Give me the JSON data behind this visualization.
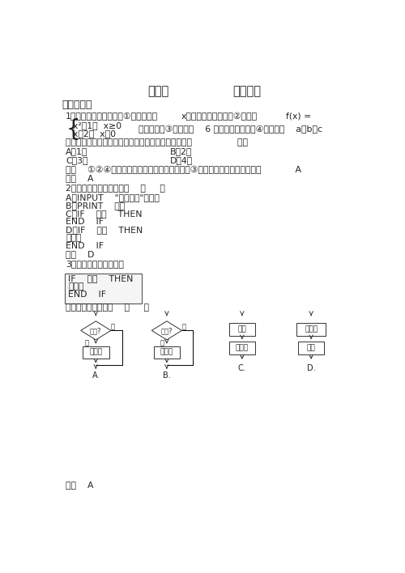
{
  "title_left": "第一章",
  "title_right": "条件语句",
  "section1": "一、选择题",
  "q1_line1a": "1．给出以下四个问题，①输入一个数",
  "q1_line1b": "x，输出它的绝对值；②求函数",
  "q1_line1c": "f(x) =",
  "q1_line2": "x²－1，  x≥0",
  "q1_line3": "x＋2，  x＜0",
  "q1_line4": "的函数值；③求面积为    6 的正方形的周长；④求三个数    a，b，c",
  "q1_line5": "中的最大数，其中不需要用条件语句来描述其算法的有                （）",
  "q1_A": "A．1个",
  "q1_B": "B．2个",
  "q1_C": "C．3个",
  "q1_D": "D．4个",
  "q1_anal": "解析    ①②④都需要条件语句描述其算法，只有③不需用条件语句描述，故选            A",
  "q1_ans": "答案    A",
  "q2_line1": "2．条件语句的格式可以是    （     ）",
  "q2_A": "A．INPUT    \"提示内容\"；变量",
  "q2_B": "B．PRINT    变量",
  "q2_C": "C．IF    条件    THEN",
  "q2_C2": "END    IF",
  "q2_D": "D．IF    条件    THEN",
  "q2_D2": "语句体",
  "q2_D3": "END    IF",
  "q2_ans": "答案    D",
  "q3_line1": "3．已如条件语句如下：",
  "q3_code1": "IF    条件    THEN",
  "q3_code2": "语句体",
  "q3_code3": "END    IF",
  "q3_line2": "其对应的条件结构是    （     ）",
  "q3_ans": "答案    A",
  "bg_color": "#ffffff",
  "text_color": "#222222"
}
